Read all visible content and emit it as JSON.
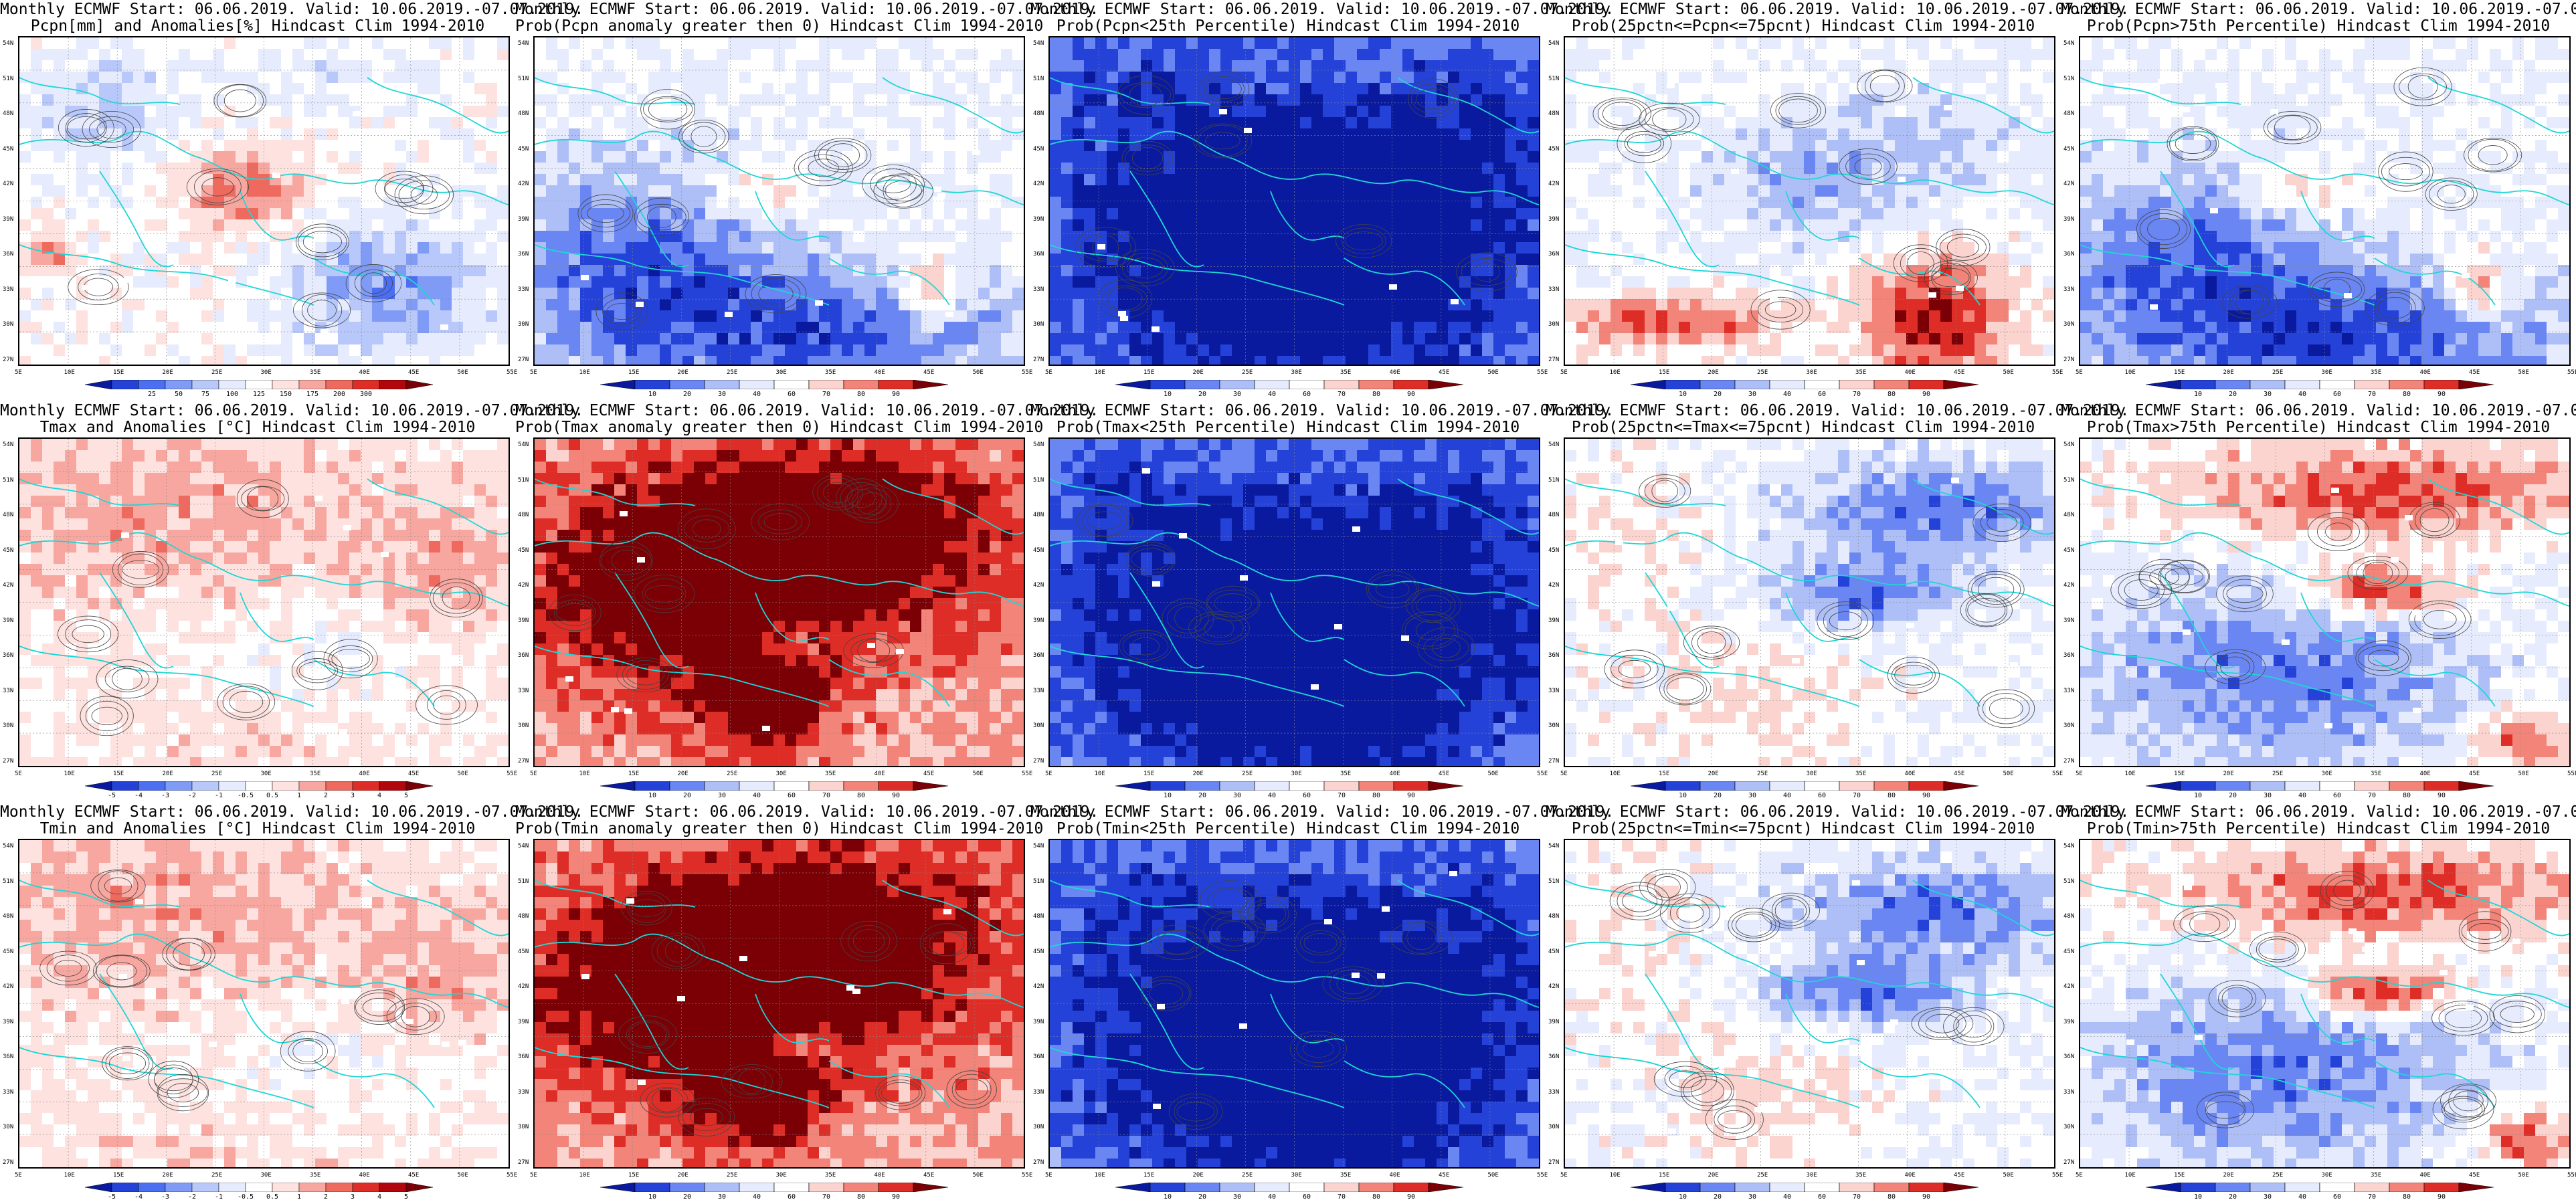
{
  "common": {
    "line1": "Monthly ECMWF Start: 06.06.2019. Valid: 10.06.2019.-07.07.2019.",
    "lat_labels": [
      "54N",
      "51N",
      "48N",
      "45N",
      "42N",
      "39N",
      "36N",
      "33N",
      "30N",
      "27N"
    ],
    "lon_labels": [
      "5E",
      "10E",
      "15E",
      "20E",
      "25E",
      "30E",
      "35E",
      "40E",
      "45E",
      "50E",
      "55E"
    ]
  },
  "colorbars": {
    "pcpn": {
      "labels": [
        "25",
        "50",
        "75",
        "100",
        "125",
        "150",
        "175",
        "200",
        "300"
      ],
      "colors": [
        "#0a1a9e",
        "#2542d8",
        "#4b6ff0",
        "#7f9bf6",
        "#b8c8fa",
        "#e6ecfd",
        "#ffffff",
        "#fde2df",
        "#f7a7a0",
        "#ee6a5f",
        "#de2d26",
        "#b1060b",
        "#7a0005"
      ]
    },
    "anom": {
      "labels": [
        "-5",
        "-4",
        "-3",
        "-2",
        "-1",
        "-0.5",
        "0.5",
        "1",
        "2",
        "3",
        "4",
        "5"
      ],
      "colors": [
        "#0a1a9e",
        "#2542d8",
        "#4b6ff0",
        "#7f9bf6",
        "#b8c8fa",
        "#e6ecfd",
        "#ffffff",
        "#fde2df",
        "#f7a7a0",
        "#ee6a5f",
        "#de2d26",
        "#b1060b",
        "#7a0005"
      ]
    },
    "prob": {
      "labels": [
        "10",
        "20",
        "30",
        "40",
        "60",
        "70",
        "80",
        "90"
      ],
      "colors": [
        "#0a1a9e",
        "#2542d8",
        "#6a86f2",
        "#aebff8",
        "#e6ecfd",
        "#ffffff",
        "#fbd3cf",
        "#f28479",
        "#de2d26",
        "#7a0005"
      ]
    }
  },
  "panels": [
    {
      "id": "p-1-1",
      "title": "Pcpn[mm] and Anomalies[%] Hindcast Clim 1994-2010",
      "cbar": "pcpn",
      "scheme": "pcpn"
    },
    {
      "id": "p-1-2",
      "title": "Prob(Pcpn anomaly greater then 0) Hindcast Clim 1994-2010",
      "cbar": "prob",
      "scheme": "blue-mid"
    },
    {
      "id": "p-1-3",
      "title": "Prob(Pcpn<25th Percentile) Hindcast Clim 1994-2010",
      "cbar": "prob",
      "scheme": "blue-deep"
    },
    {
      "id": "p-1-4",
      "title": "Prob(25pctn<=Pcpn<=75pcnt) Hindcast Clim 1994-2010",
      "cbar": "prob",
      "scheme": "mixed-red-south"
    },
    {
      "id": "p-1-5",
      "title": "Prob(Pcpn>75th Percentile) Hindcast Clim 1994-2010",
      "cbar": "prob",
      "scheme": "blue-mid"
    },
    {
      "id": "p-2-1",
      "title": "Tmax and Anomalies [°C] Hindcast Clim 1994-2010",
      "cbar": "anom",
      "scheme": "red-light"
    },
    {
      "id": "p-2-2",
      "title": "Prob(Tmax anomaly greater then 0) Hindcast Clim 1994-2010",
      "cbar": "prob",
      "scheme": "red-deep"
    },
    {
      "id": "p-2-3",
      "title": "Prob(Tmax<25th Percentile) Hindcast Clim 1994-2010",
      "cbar": "prob",
      "scheme": "blue-deep"
    },
    {
      "id": "p-2-4",
      "title": "Prob(25pctn<=Tmax<=75pcnt) Hindcast Clim 1994-2010",
      "cbar": "prob",
      "scheme": "mixed"
    },
    {
      "id": "p-2-5",
      "title": "Prob(Tmax>75th Percentile) Hindcast Clim 1994-2010",
      "cbar": "prob",
      "scheme": "red-blue"
    },
    {
      "id": "p-3-1",
      "title": "Tmin and Anomalies [°C] Hindcast Clim 1994-2010",
      "cbar": "anom",
      "scheme": "red-light"
    },
    {
      "id": "p-3-2",
      "title": "Prob(Tmin anomaly greater then 0) Hindcast Clim 1994-2010",
      "cbar": "prob",
      "scheme": "red-deep"
    },
    {
      "id": "p-3-3",
      "title": "Prob(Tmin<25th Percentile) Hindcast Clim 1994-2010",
      "cbar": "prob",
      "scheme": "blue-deep"
    },
    {
      "id": "p-3-4",
      "title": "Prob(25pctn<=Tmin<=75pcnt) Hindcast Clim 1994-2010",
      "cbar": "prob",
      "scheme": "mixed"
    },
    {
      "id": "p-3-5",
      "title": "Prob(Tmin>75th Percentile) Hindcast Clim 1994-2010",
      "cbar": "prob",
      "scheme": "red-blue"
    }
  ]
}
